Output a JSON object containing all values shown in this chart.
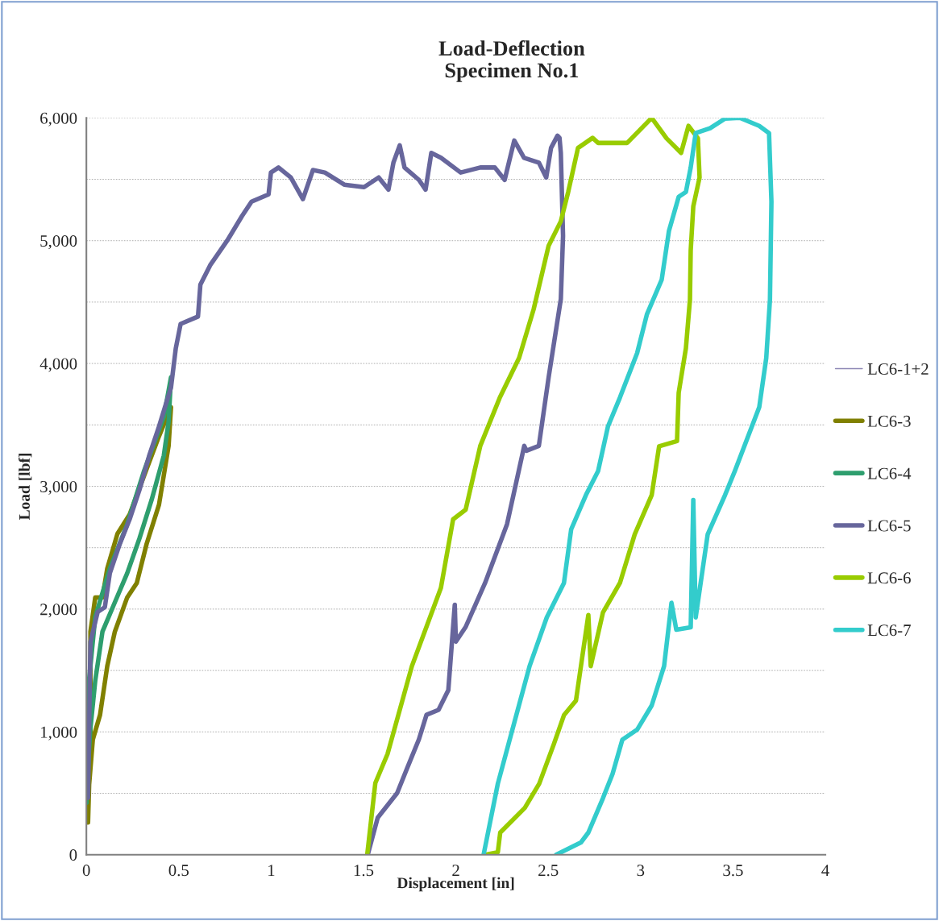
{
  "chart_data": {
    "type": "line",
    "title": "Load-Deflection",
    "subtitle": "Specimen No.1",
    "xlabel": "Displacement [in]",
    "ylabel": "Load [lbf]",
    "xlim": [
      0,
      4
    ],
    "xticks": [
      0,
      0.5,
      1,
      1.5,
      2,
      2.5,
      3,
      3.5,
      4
    ],
    "ylim": [
      0,
      6000
    ],
    "yticks": [
      0,
      {
        "value": 500,
        "label": null
      },
      {
        "value": 1000,
        "label": "1,000"
      },
      {
        "value": 1500,
        "label": null
      },
      {
        "value": 2000,
        "label": "2,000"
      },
      {
        "value": 2500,
        "label": null
      },
      {
        "value": 3000,
        "label": "3,000"
      },
      {
        "value": 3500,
        "label": null
      },
      {
        "value": 4000,
        "label": "4,000"
      },
      {
        "value": 4500,
        "label": null
      },
      {
        "value": 5000,
        "label": "5,000"
      },
      {
        "value": 5500,
        "label": null
      },
      {
        "value": 6000,
        "label": "6,000"
      }
    ],
    "grid": "y",
    "legend": "right",
    "marker": "none",
    "line_style": "solid",
    "series": [
      {
        "name": "LC6-1+2",
        "color": "#8c86b4"
      },
      {
        "name": "LC6-3",
        "color": "#808000",
        "x": [
          0.009,
          0.022,
          0.022,
          0.048,
          0.087,
          0.113,
          0.168,
          0.234,
          0.313,
          0.393,
          0.458,
          0.445,
          0.393,
          0.326,
          0.273,
          0.221,
          0.154,
          0.113,
          0.074,
          0.035,
          0.009
        ],
        "values": [
          262,
          939,
          1816,
          2095,
          2095,
          2331,
          2613,
          2771,
          3089,
          3408,
          3644,
          3329,
          2850,
          2531,
          2213,
          2095,
          1816,
          1536,
          1139,
          939,
          462
        ]
      },
      {
        "name": "LC6-4",
        "color": "#2e9e6e",
        "x": [
          0.001,
          0.009,
          0.048,
          0.127,
          0.221,
          0.313,
          0.419,
          0.458,
          0.445,
          0.419,
          0.353,
          0.287,
          0.221,
          0.154,
          0.087,
          0.048,
          0.02,
          0.005
        ],
        "values": [
          423,
          1339,
          1937,
          2331,
          2692,
          3129,
          3565,
          3887,
          3526,
          3250,
          2889,
          2574,
          2292,
          2055,
          1816,
          1418,
          1000,
          600
        ]
      },
      {
        "name": "LC6-5",
        "color": "#67669c",
        "x": [
          0.005,
          0.009,
          0.022,
          0.061,
          0.1,
          0.127,
          0.181,
          0.234,
          0.287,
          0.34,
          0.393,
          0.458,
          0.484,
          0.51,
          0.604,
          0.617,
          0.67,
          0.762,
          0.842,
          0.894,
          0.986,
          0.999,
          1.04,
          1.106,
          1.172,
          1.226,
          1.291,
          1.396,
          1.503,
          1.582,
          1.635,
          1.662,
          1.696,
          1.722,
          1.8,
          1.836,
          1.867,
          1.919,
          2.026,
          2.132,
          2.211,
          2.264,
          2.316,
          2.369,
          2.449,
          2.489,
          2.515,
          2.55,
          2.561,
          2.568,
          2.58,
          2.568,
          2.502,
          2.449,
          2.382,
          2.37,
          2.277,
          2.158,
          2.053,
          2.0,
          1.994,
          1.959,
          1.906,
          1.841,
          1.8,
          1.735,
          1.682,
          1.577,
          1.523
        ],
        "values": [
          500,
          462,
          1733,
          1976,
          2016,
          2292,
          2531,
          2731,
          2969,
          3250,
          3487,
          3805,
          4124,
          4322,
          4382,
          4642,
          4800,
          5000,
          5200,
          5318,
          5377,
          5555,
          5596,
          5515,
          5338,
          5575,
          5555,
          5456,
          5436,
          5515,
          5416,
          5636,
          5776,
          5596,
          5495,
          5416,
          5715,
          5675,
          5555,
          5596,
          5596,
          5495,
          5816,
          5675,
          5636,
          5515,
          5755,
          5855,
          5837,
          5715,
          5039,
          4524,
          3887,
          3329,
          3290,
          3329,
          2692,
          2213,
          1855,
          1735,
          2035,
          1340,
          1179,
          1139,
          940,
          700,
          502,
          302,
          0
        ]
      },
      {
        "name": "LC6-6",
        "color": "#99cc00",
        "x": [
          1.52,
          1.564,
          1.63,
          1.762,
          1.919,
          1.985,
          2.053,
          2.132,
          2.238,
          2.342,
          2.421,
          2.502,
          2.568,
          2.608,
          2.661,
          2.74,
          2.77,
          2.927,
          3.06,
          3.14,
          3.219,
          3.259,
          3.31,
          3.319,
          3.285,
          3.271,
          3.267,
          3.245,
          3.206,
          3.197,
          3.1,
          3.06,
          2.968,
          2.888,
          2.796,
          2.73,
          2.717,
          2.65,
          2.585,
          2.53,
          2.451,
          2.373,
          2.24,
          2.227,
          2.16
        ],
        "values": [
          0,
          584,
          820,
          1536,
          2173,
          2731,
          2810,
          3329,
          3723,
          4045,
          4442,
          4959,
          5158,
          5397,
          5755,
          5837,
          5796,
          5796,
          6000,
          5834,
          5715,
          5935,
          5834,
          5515,
          5279,
          4918,
          4520,
          4124,
          3762,
          3368,
          3326,
          2929,
          2609,
          2213,
          1972,
          1536,
          1952,
          1255,
          1136,
          900,
          578,
          381,
          180,
          20,
          0
        ]
      },
      {
        "name": "LC6-7",
        "color": "#33cccc",
        "x": [
          2.15,
          2.227,
          2.32,
          2.399,
          2.492,
          2.585,
          2.624,
          2.704,
          2.77,
          2.823,
          2.888,
          2.981,
          3.034,
          3.114,
          3.153,
          3.206,
          3.245,
          3.271,
          3.298,
          3.376,
          3.457,
          3.537,
          3.642,
          3.695,
          3.708,
          3.7,
          3.68,
          3.642,
          3.51,
          3.457,
          3.363,
          3.298,
          3.285,
          3.271,
          3.193,
          3.167,
          3.127,
          3.06,
          2.981,
          2.901,
          2.848,
          2.796,
          2.717,
          2.677,
          2.543
        ],
        "values": [
          0,
          578,
          1097,
          1536,
          1932,
          2213,
          2649,
          2929,
          3125,
          3487,
          3723,
          4084,
          4400,
          4682,
          5078,
          5357,
          5397,
          5596,
          5876,
          5916,
          5994,
          6000,
          5935,
          5876,
          5318,
          4520,
          4045,
          3644,
          3125,
          2929,
          2609,
          1932,
          2889,
          1851,
          1832,
          2051,
          1536,
          1215,
          1018,
          936,
          658,
          460,
          180,
          100,
          0
        ]
      }
    ]
  }
}
